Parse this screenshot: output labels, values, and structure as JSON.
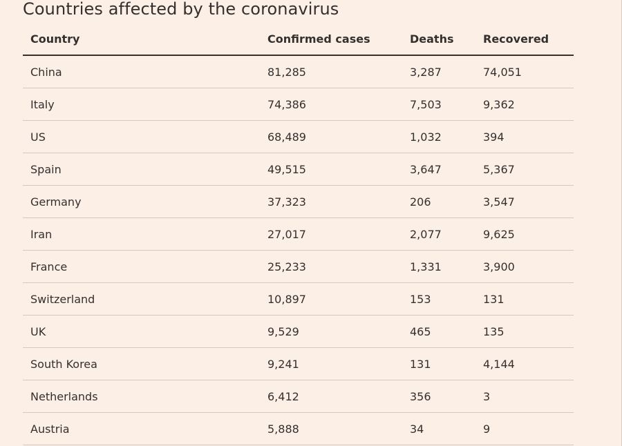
{
  "title": "Countries affected by the coronavirus",
  "table": {
    "columns": [
      "Country",
      "Confirmed cases",
      "Deaths",
      "Recovered"
    ],
    "rows": [
      [
        "China",
        "81,285",
        "3,287",
        "74,051"
      ],
      [
        "Italy",
        "74,386",
        "7,503",
        "9,362"
      ],
      [
        "US",
        "68,489",
        "1,032",
        "394"
      ],
      [
        "Spain",
        "49,515",
        "3,647",
        "5,367"
      ],
      [
        "Germany",
        "37,323",
        "206",
        "3,547"
      ],
      [
        "Iran",
        "27,017",
        "2,077",
        "9,625"
      ],
      [
        "France",
        "25,233",
        "1,331",
        "3,900"
      ],
      [
        "Switzerland",
        "10,897",
        "153",
        "131"
      ],
      [
        "UK",
        "9,529",
        "465",
        "135"
      ],
      [
        "South Korea",
        "9,241",
        "131",
        "4,144"
      ],
      [
        "Netherlands",
        "6,412",
        "356",
        "3"
      ],
      [
        "Austria",
        "5,888",
        "34",
        "9"
      ]
    ]
  },
  "colors": {
    "background": "#fcefe6",
    "text": "#33302e",
    "header_rule": "#33302e",
    "row_rule": "#d4c8c0"
  }
}
